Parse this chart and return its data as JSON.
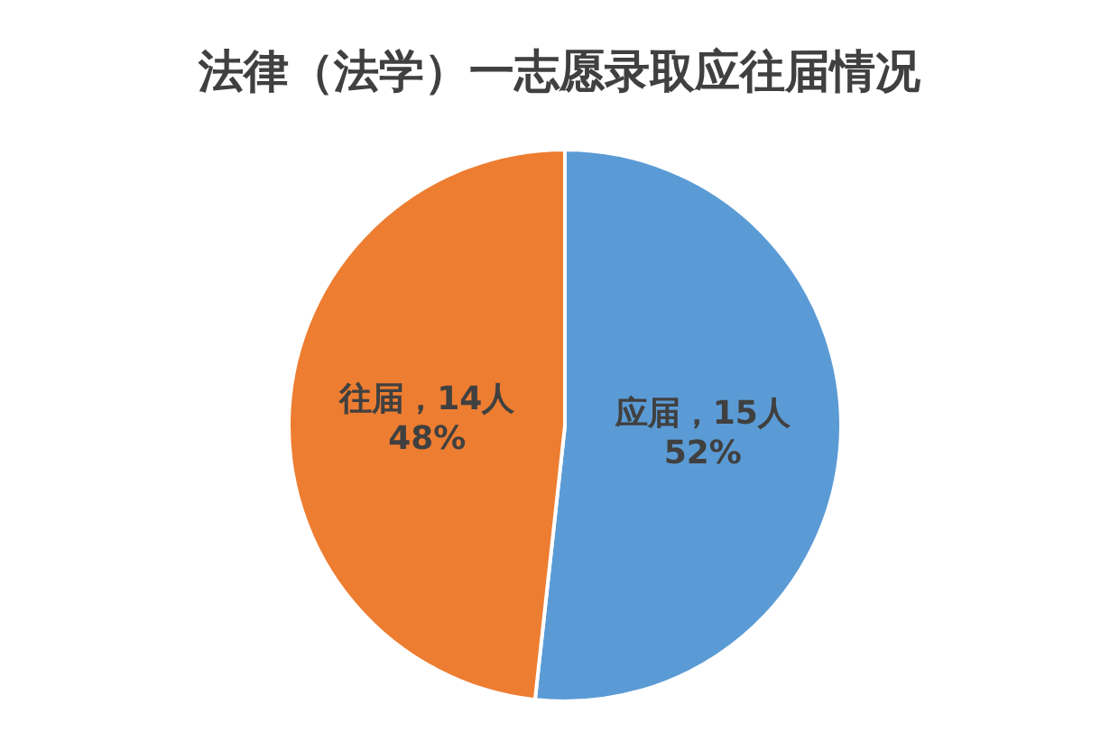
{
  "chart_data": {
    "type": "pie",
    "title": "法律（法学）一志愿录取应往届情况",
    "categories": [
      "应届",
      "往届"
    ],
    "values": [
      15,
      14
    ],
    "colors": [
      "#5b9bd5",
      "#ed7d31"
    ],
    "value_labels": [
      "，15人\n52%",
      "，14人\n48%"
    ]
  }
}
